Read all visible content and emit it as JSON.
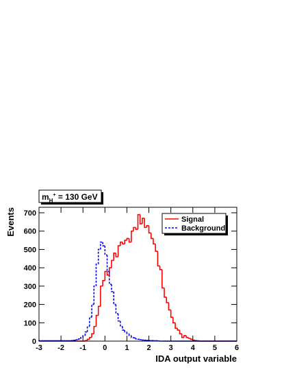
{
  "chart_data": {
    "type": "histogram",
    "annotation": {
      "base": "m",
      "sub": "H",
      "sup": "+",
      "rest": " = 130 GeV"
    },
    "x_label": "IDA output variable",
    "y_label": "Events",
    "xlim": [
      -3,
      6
    ],
    "ylim": [
      0,
      730
    ],
    "xticks": [
      -3,
      -2,
      -1,
      0,
      1,
      2,
      3,
      4,
      5,
      6
    ],
    "yticks": [
      0,
      100,
      200,
      300,
      400,
      500,
      600,
      700
    ],
    "legend": "upper right",
    "bins": [
      -3,
      -2.9,
      -2.8,
      -2.7,
      -2.6,
      -2.5,
      -2.4,
      -2.3,
      -2.2,
      -2.1,
      -2,
      -1.9,
      -1.8,
      -1.7,
      -1.6,
      -1.5,
      -1.4,
      -1.3,
      -1.2,
      -1.1,
      -1,
      -0.9,
      -0.8,
      -0.7,
      -0.6,
      -0.5,
      -0.4,
      -0.3,
      -0.2,
      -0.1,
      0,
      0.1,
      0.2,
      0.3,
      0.4,
      0.5,
      0.6,
      0.7,
      0.8,
      0.9,
      1,
      1.1,
      1.2,
      1.3,
      1.4,
      1.5,
      1.6,
      1.7,
      1.8,
      1.9,
      2,
      2.1,
      2.2,
      2.3,
      2.4,
      2.5,
      2.6,
      2.7,
      2.8,
      2.9,
      3,
      3.1,
      3.2,
      3.3,
      3.4,
      3.5,
      3.6,
      3.7,
      3.8,
      3.9,
      4,
      4.1,
      4.2,
      4.3,
      4.4,
      4.5,
      4.6,
      4.7,
      4.8,
      4.9,
      5,
      5.1,
      5.2,
      5.3,
      5.4,
      5.5,
      5.6,
      5.7,
      5.8,
      5.9,
      6
    ],
    "series": [
      {
        "name": "Signal",
        "color": "#ff0000",
        "dash": false,
        "values": [
          0,
          0,
          0,
          0,
          0,
          0,
          0,
          0,
          0,
          0,
          0,
          0,
          0,
          0,
          0,
          0,
          0,
          0,
          0,
          0,
          0,
          3,
          10,
          20,
          40,
          80,
          140,
          190,
          300,
          330,
          380,
          360,
          400,
          440,
          480,
          460,
          520,
          540,
          530,
          550,
          560,
          540,
          600,
          620,
          610,
          690,
          640,
          670,
          620,
          630,
          590,
          560,
          530,
          490,
          410,
          390,
          290,
          240,
          210,
          170,
          130,
          100,
          70,
          60,
          40,
          20,
          30,
          20,
          15,
          10,
          5,
          3,
          2,
          0,
          0,
          0,
          0,
          0,
          0,
          0,
          0,
          0,
          0,
          0,
          0,
          0,
          0,
          0,
          0,
          0
        ]
      },
      {
        "name": "Background",
        "color": "#0000ff",
        "dash": true,
        "values": [
          2,
          2,
          2,
          2,
          2,
          2,
          2,
          2,
          2,
          2,
          2,
          2,
          2,
          2,
          2,
          3,
          5,
          8,
          12,
          20,
          30,
          50,
          80,
          130,
          200,
          300,
          420,
          500,
          540,
          520,
          470,
          380,
          310,
          270,
          200,
          150,
          110,
          80,
          60,
          50,
          40,
          30,
          20,
          18,
          12,
          10,
          8,
          6,
          5,
          4,
          3,
          3,
          2,
          2,
          1,
          0,
          0,
          0,
          0,
          0,
          0,
          0,
          0,
          0,
          0,
          0,
          0,
          0,
          0,
          0,
          0,
          0,
          0,
          0,
          0,
          0,
          0,
          0,
          0,
          0,
          0,
          0,
          0,
          0,
          0,
          0,
          0,
          0,
          0,
          0
        ]
      }
    ]
  }
}
